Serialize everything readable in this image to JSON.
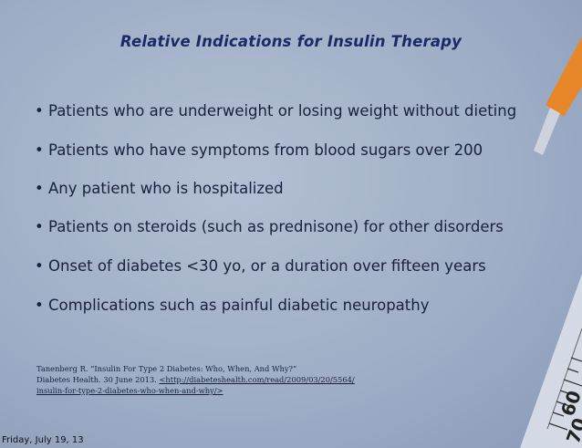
{
  "slide": {
    "title": "Relative Indications for Insulin Therapy",
    "bullets": [
      "Patients who are underweight or losing weight without dieting",
      "Patients who have symptoms from blood sugars over 200",
      "Any patient who is hospitalized",
      "Patients on steroids (such as prednisone) for other disorders",
      "Onset of diabetes <30 yo, or a duration over fifteen years",
      "Complications such as painful diabetic neuropathy"
    ],
    "citation": {
      "line1": "Tanenberg R. “Insulin For Type 2 Diabetes: Who, When, And Why?”",
      "line2_text": "Diabetes Health. 30 June 2013. ",
      "line2_link": "<http://diabeteshealth.com/read/2009/03/20/5564/",
      "line3_link": "insulin-for-type-2-diabetes-who-when-and-why/>"
    },
    "syringe_scale": [
      "60",
      "70"
    ],
    "footer": "Friday, July 19, 13"
  }
}
